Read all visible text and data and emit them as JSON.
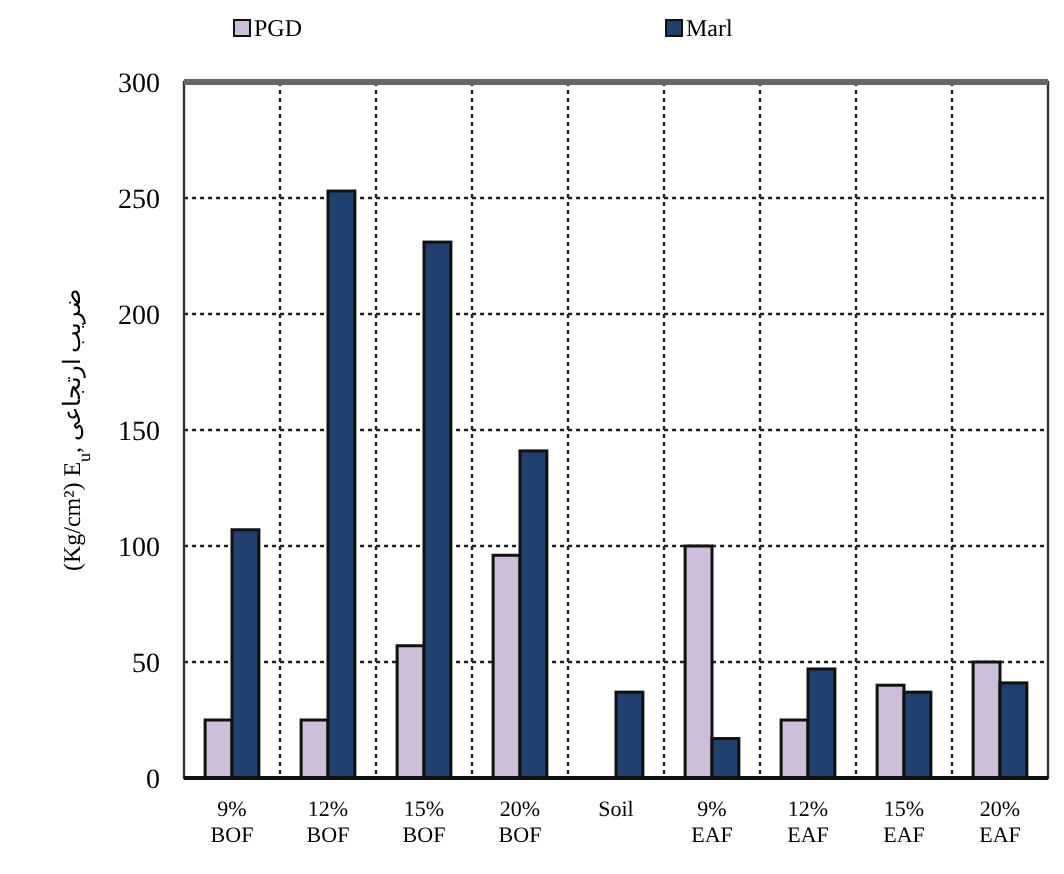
{
  "chart_data": {
    "type": "bar",
    "ylabel": "(Kg/cm²) E$_{u}$, ضریب ارتجاعی",
    "categories": [
      "9%\nBOF",
      "12%\nBOF",
      "15%\nBOF",
      "20%\nBOF",
      "Soil",
      "9%\nEAF",
      "12%\nEAF",
      "15%\nEAF",
      "20%\nEAF"
    ],
    "series": [
      {
        "name": "PGD",
        "color": "#cdbfdc",
        "values": [
          25,
          25,
          57,
          96,
          null,
          100,
          25,
          40,
          50
        ]
      },
      {
        "name": "Marl",
        "color": "#1f3f6e",
        "values": [
          107,
          253,
          231,
          141,
          37,
          17,
          47,
          37,
          41
        ]
      }
    ],
    "ylim": [
      0,
      300
    ],
    "yticks": [
      0,
      50,
      100,
      150,
      200,
      250,
      300
    ],
    "grid": true,
    "legend": "top"
  }
}
